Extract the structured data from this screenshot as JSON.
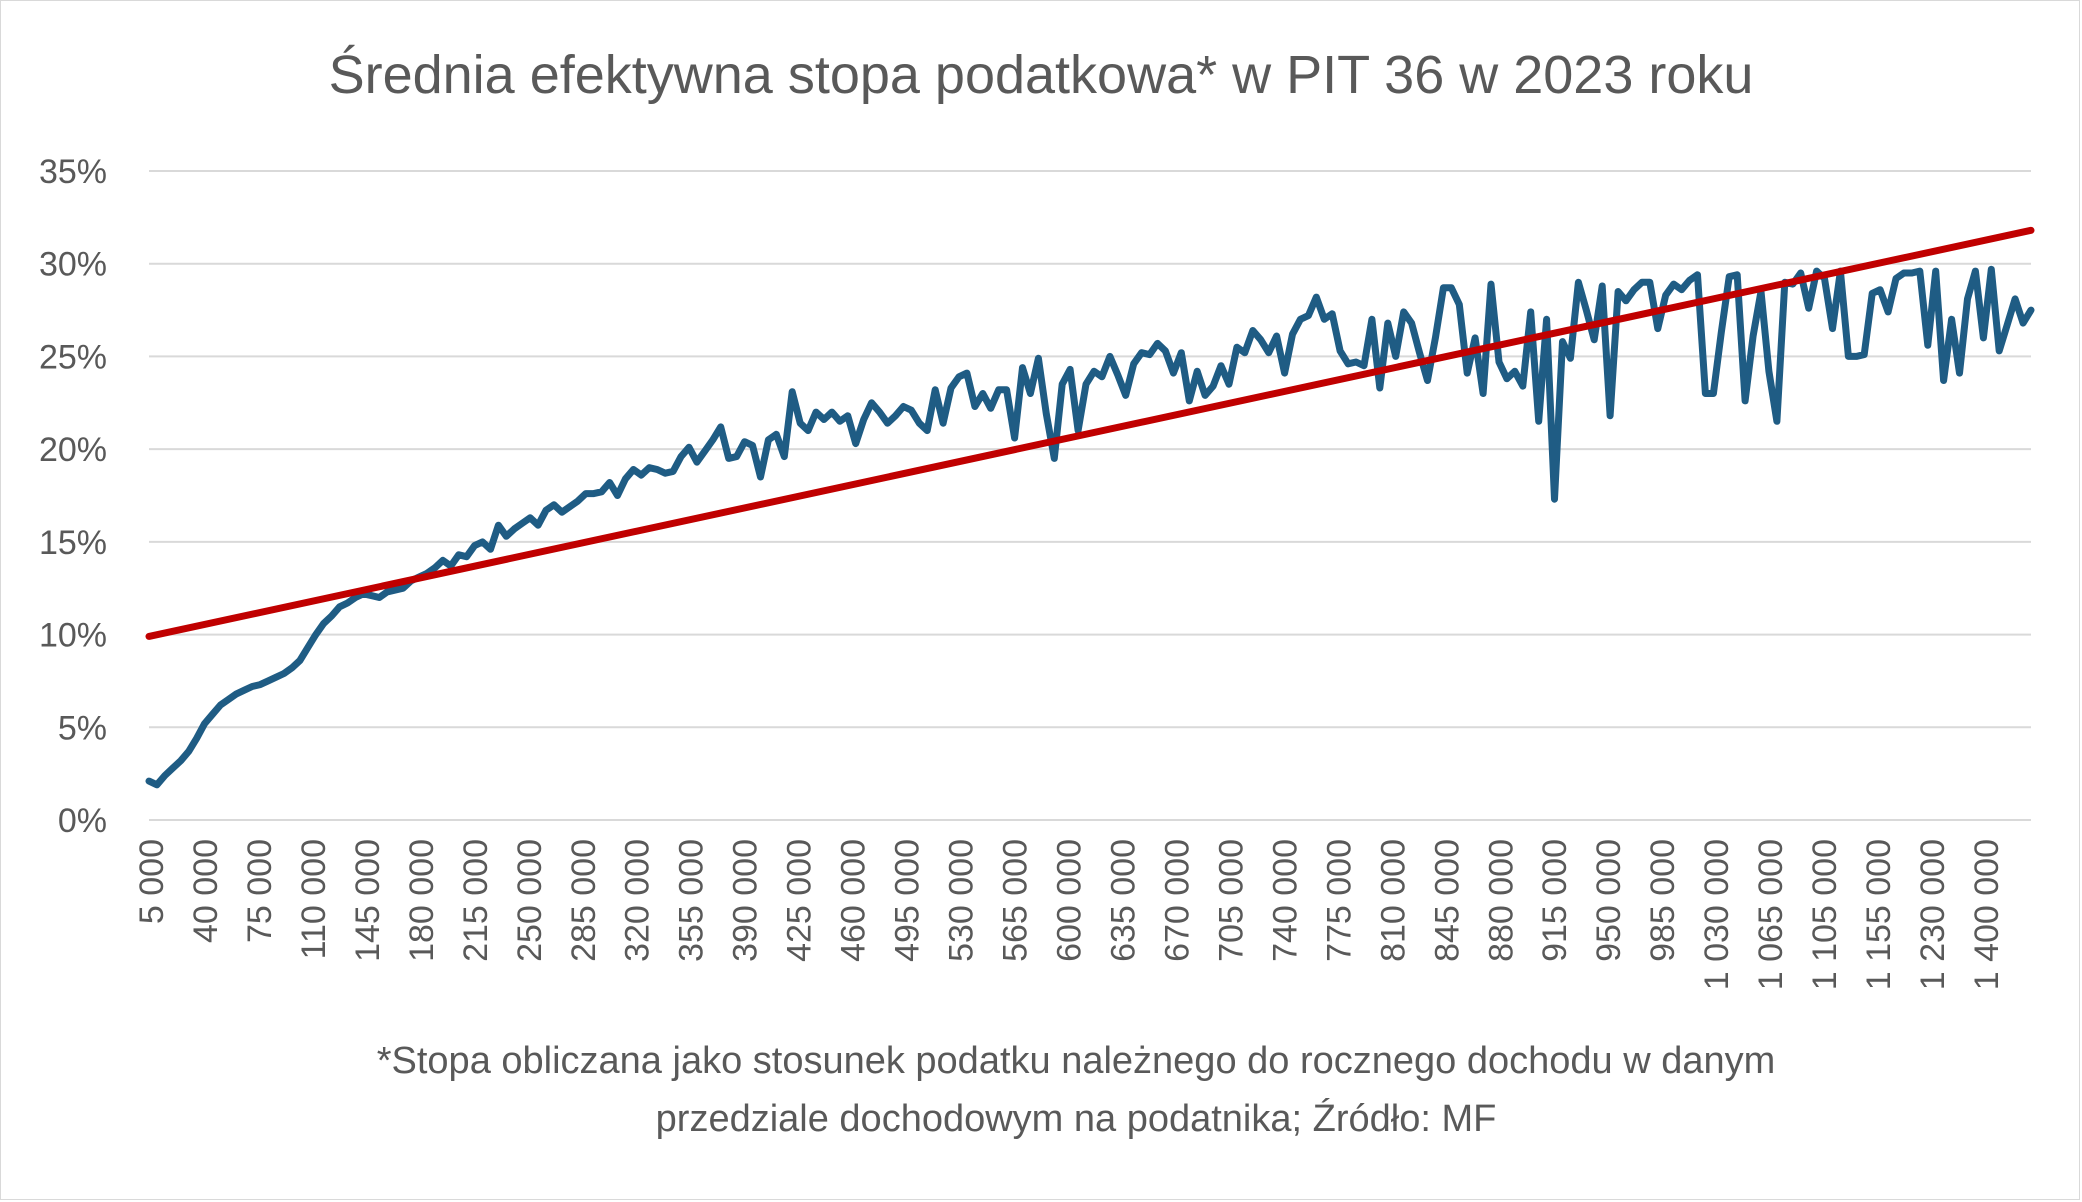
{
  "chart_data": {
    "type": "line",
    "title": "Średnia efektywna stopa podatkowa* w PIT 36 w 2023 roku",
    "note_lines": [
      "*Stopa obliczana jako stosunek podatku należnego do rocznego dochodu w danym",
      "przedziale dochodowym na podatnika; Źródło: MF"
    ],
    "xlabel": "",
    "ylabel": "",
    "y_ticks": [
      "0%",
      "5%",
      "10%",
      "15%",
      "20%",
      "25%",
      "30%",
      "35%"
    ],
    "ylim": [
      0,
      35
    ],
    "grid": true,
    "x_tick_labels": [
      "5 000",
      "40 000",
      "75 000",
      "110 000",
      "145 000",
      "180 000",
      "215 000",
      "250 000",
      "285 000",
      "320 000",
      "355 000",
      "390 000",
      "425 000",
      "460 000",
      "495 000",
      "530 000",
      "565 000",
      "600 000",
      "635 000",
      "670 000",
      "705 000",
      "740 000",
      "775 000",
      "810 000",
      "845 000",
      "880 000",
      "915 000",
      "950 000",
      "985 000",
      "1 030 000",
      "1 065 000",
      "1 105 000",
      "1 155 000",
      "1 230 000",
      "1 400 000"
    ],
    "series": [
      {
        "name": "",
        "color": "#1f5c84",
        "values": [
          2.1,
          1.9,
          2.4,
          2.8,
          3.2,
          3.7,
          4.4,
          5.2,
          5.7,
          6.2,
          6.5,
          6.8,
          7.0,
          7.2,
          7.3,
          7.5,
          7.7,
          7.9,
          8.2,
          8.6,
          9.3,
          10.0,
          10.6,
          11.0,
          11.5,
          11.7,
          12.0,
          12.2,
          12.1,
          12.0,
          12.3,
          12.4,
          12.5,
          12.9,
          13.1,
          13.3,
          13.6,
          14.0,
          13.7,
          14.3,
          14.2,
          14.8,
          15.0,
          14.6,
          15.9,
          15.3,
          15.7,
          16.0,
          16.3,
          15.9,
          16.7,
          17.0,
          16.6,
          16.9,
          17.2,
          17.6,
          17.6,
          17.7,
          18.2,
          17.5,
          18.4,
          18.9,
          18.6,
          19.0,
          18.9,
          18.7,
          18.8,
          19.6,
          20.1,
          19.3,
          19.9,
          20.5,
          21.2,
          19.5,
          19.6,
          20.4,
          20.2,
          18.5,
          20.5,
          20.8,
          19.6,
          23.1,
          21.4,
          21.0,
          22.0,
          21.6,
          22.0,
          21.5,
          21.8,
          20.3,
          21.6,
          22.5,
          22.0,
          21.4,
          21.8,
          22.3,
          22.1,
          21.4,
          21.0,
          23.2,
          21.4,
          23.3,
          23.9,
          24.1,
          22.3,
          23.0,
          22.2,
          23.2,
          23.2,
          20.6,
          24.4,
          23.0,
          24.9,
          21.9,
          19.5,
          23.5,
          24.3,
          21.0,
          23.5,
          24.2,
          23.9,
          25.0,
          24.0,
          22.9,
          24.6,
          25.2,
          25.1,
          25.7,
          25.3,
          24.1,
          25.2,
          22.6,
          24.2,
          22.9,
          23.4,
          24.5,
          23.5,
          25.5,
          25.2,
          26.4,
          25.9,
          25.2,
          26.1,
          24.1,
          26.2,
          27.0,
          27.2,
          28.2,
          27.0,
          27.3,
          25.3,
          24.6,
          24.7,
          24.5,
          27.0,
          23.3,
          26.8,
          25.0,
          27.4,
          26.8,
          25.2,
          23.7,
          26.0,
          28.7,
          28.7,
          27.8,
          24.1,
          26.0,
          23.0,
          28.9,
          24.7,
          23.8,
          24.2,
          23.4,
          27.4,
          21.5,
          27.0,
          17.3,
          25.8,
          24.9,
          29.0,
          27.5,
          25.9,
          28.8,
          21.8,
          28.5,
          28.0,
          28.6,
          29.0,
          29.0,
          26.5,
          28.3,
          28.9,
          28.6,
          29.1,
          29.4,
          23.0,
          23.0,
          26.3,
          29.3,
          29.4,
          22.6,
          26.1,
          28.5,
          24.2,
          21.5,
          29.0,
          28.9,
          29.5,
          27.6,
          29.6,
          29.2,
          26.5,
          29.6,
          25.0,
          25.0,
          25.1,
          28.4,
          28.6,
          27.4,
          29.2,
          29.5,
          29.5,
          29.6,
          25.6,
          29.6,
          23.7,
          27.0,
          24.1,
          28.1,
          29.6,
          26.0,
          29.7,
          25.3,
          26.7,
          28.1,
          26.8,
          27.5
        ]
      },
      {
        "name": "",
        "color": "#c00000",
        "trend": "linear",
        "start": 9.9,
        "end": 31.8
      }
    ]
  }
}
